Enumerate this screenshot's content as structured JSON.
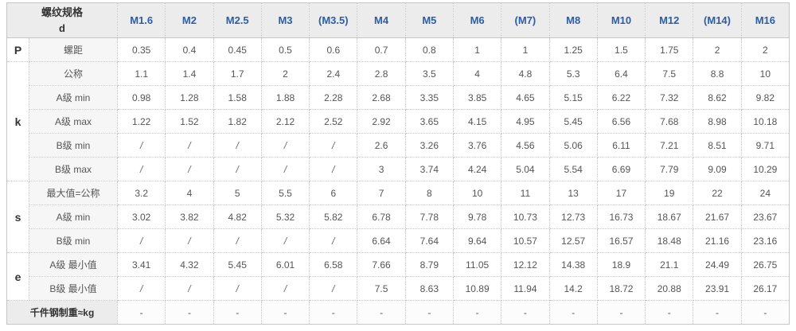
{
  "header": {
    "corner_line1": "螺纹规格",
    "corner_line2": "d"
  },
  "colors": {
    "column_header_text": "#2b5da8",
    "header_bg": "#ececec",
    "label_bg": "#f6f6f6",
    "border": "#c9c9c9",
    "body_text": "#555555"
  },
  "chart_data": {
    "type": "table",
    "title": "螺纹规格 d",
    "columns": [
      "M1.6",
      "M2",
      "M2.5",
      "M3",
      "(M3.5)",
      "M4",
      "M5",
      "M6",
      "(M7)",
      "M8",
      "M10",
      "M12",
      "(M14)",
      "M16"
    ],
    "groups": [
      {
        "key": "P",
        "rows": [
          {
            "label": "螺距",
            "values": [
              "0.35",
              "0.4",
              "0.45",
              "0.5",
              "0.6",
              "0.7",
              "0.8",
              "1",
              "1",
              "1.25",
              "1.5",
              "1.75",
              "2",
              "2"
            ]
          }
        ]
      },
      {
        "key": "k",
        "rows": [
          {
            "label": "公称",
            "values": [
              "1.1",
              "1.4",
              "1.7",
              "2",
              "2.4",
              "2.8",
              "3.5",
              "4",
              "4.8",
              "5.3",
              "6.4",
              "7.5",
              "8.8",
              "10"
            ]
          },
          {
            "label": "A级 min",
            "values": [
              "0.98",
              "1.28",
              "1.58",
              "1.88",
              "2.28",
              "2.68",
              "3.35",
              "3.85",
              "4.65",
              "5.15",
              "6.22",
              "7.32",
              "8.62",
              "9.82"
            ]
          },
          {
            "label": "A级 max",
            "values": [
              "1.22",
              "1.52",
              "1.82",
              "2.12",
              "2.52",
              "2.92",
              "3.65",
              "4.15",
              "4.95",
              "5.45",
              "6.56",
              "7.68",
              "8.98",
              "10.18"
            ]
          },
          {
            "label": "B级 min",
            "values": [
              "/",
              "/",
              "/",
              "/",
              "/",
              "2.6",
              "3.26",
              "3.76",
              "4.56",
              "5.06",
              "6.11",
              "7.21",
              "8.51",
              "9.71"
            ]
          },
          {
            "label": "B级 max",
            "values": [
              "/",
              "/",
              "/",
              "/",
              "/",
              "3",
              "3.74",
              "4.24",
              "5.04",
              "5.54",
              "6.69",
              "7.79",
              "9.09",
              "10.29"
            ]
          }
        ]
      },
      {
        "key": "s",
        "rows": [
          {
            "label": "最大值=公称",
            "values": [
              "3.2",
              "4",
              "5",
              "5.5",
              "6",
              "7",
              "8",
              "10",
              "11",
              "13",
              "17",
              "19",
              "22",
              "24"
            ]
          },
          {
            "label": "A级 min",
            "values": [
              "3.02",
              "3.82",
              "4.82",
              "5.32",
              "5.82",
              "6.78",
              "7.78",
              "9.78",
              "10.73",
              "12.73",
              "16.73",
              "18.67",
              "21.67",
              "23.67"
            ]
          },
          {
            "label": "B级 min",
            "values": [
              "/",
              "/",
              "/",
              "/",
              "/",
              "6.64",
              "7.64",
              "9.64",
              "10.57",
              "12.57",
              "16.57",
              "18.48",
              "21.16",
              "23.16"
            ]
          }
        ]
      },
      {
        "key": "e",
        "rows": [
          {
            "label": "A级 最小值",
            "values": [
              "3.41",
              "4.32",
              "5.45",
              "6.01",
              "6.58",
              "7.66",
              "8.79",
              "11.05",
              "12.12",
              "14.38",
              "18.9",
              "21.1",
              "24.49",
              "26.75"
            ]
          },
          {
            "label": "B级 最小值",
            "values": [
              "/",
              "/",
              "/",
              "/",
              "/",
              "7.5",
              "8.63",
              "10.89",
              "11.94",
              "14.2",
              "18.72",
              "20.88",
              "23.91",
              "26.17"
            ]
          }
        ]
      },
      {
        "key": "",
        "footer": true,
        "rows": [
          {
            "label": "千件钢制重≈kg",
            "values": [
              "-",
              "-",
              "-",
              "-",
              "-",
              "-",
              "-",
              "-",
              "-",
              "-",
              "-",
              "-",
              "-",
              "-"
            ]
          }
        ]
      }
    ]
  }
}
